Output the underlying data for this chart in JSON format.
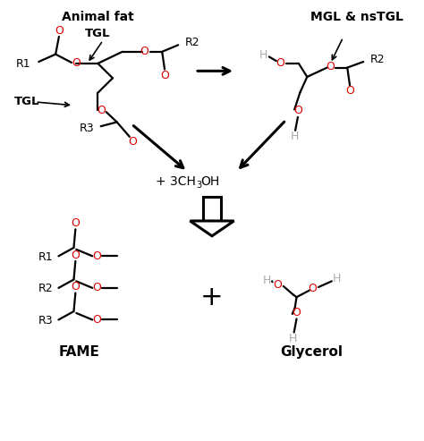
{
  "bg": "#ffffff",
  "black": "#000000",
  "red": "#dd0000",
  "gray": "#aaaaaa",
  "figsize": [
    4.74,
    4.93
  ],
  "dpi": 100,
  "xlim": [
    0,
    10
  ],
  "ylim": [
    0,
    10.5
  ],
  "title_animal": "Animal fat",
  "title_tgl": "TGL",
  "title_mgl": "MGL & nsTGL",
  "title_fame": "FAME",
  "title_glycerol": "Glycerol"
}
